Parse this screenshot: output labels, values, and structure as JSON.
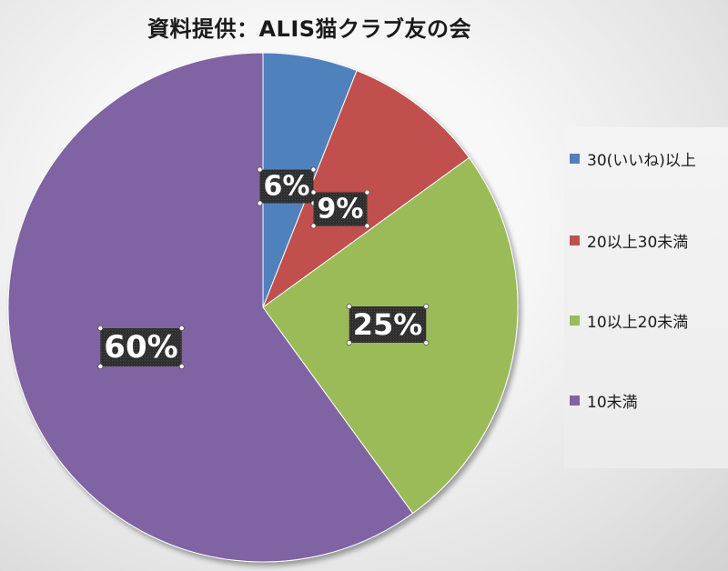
{
  "chart_data": {
    "type": "pie",
    "title": "資料提供：ALIS猫クラブ友の会",
    "legend_position": "right",
    "slices": [
      {
        "label": "30(いいね)以上",
        "value": 6,
        "display": "6%",
        "color": "#4F81BD"
      },
      {
        "label": "20以上30未満",
        "value": 9,
        "display": "9%",
        "color": "#C0504D"
      },
      {
        "label": "10以上20未満",
        "value": 25,
        "display": "25%",
        "color": "#9BBB59"
      },
      {
        "label": "10未満",
        "value": 60,
        "display": "60%",
        "color": "#8064A2"
      }
    ]
  }
}
